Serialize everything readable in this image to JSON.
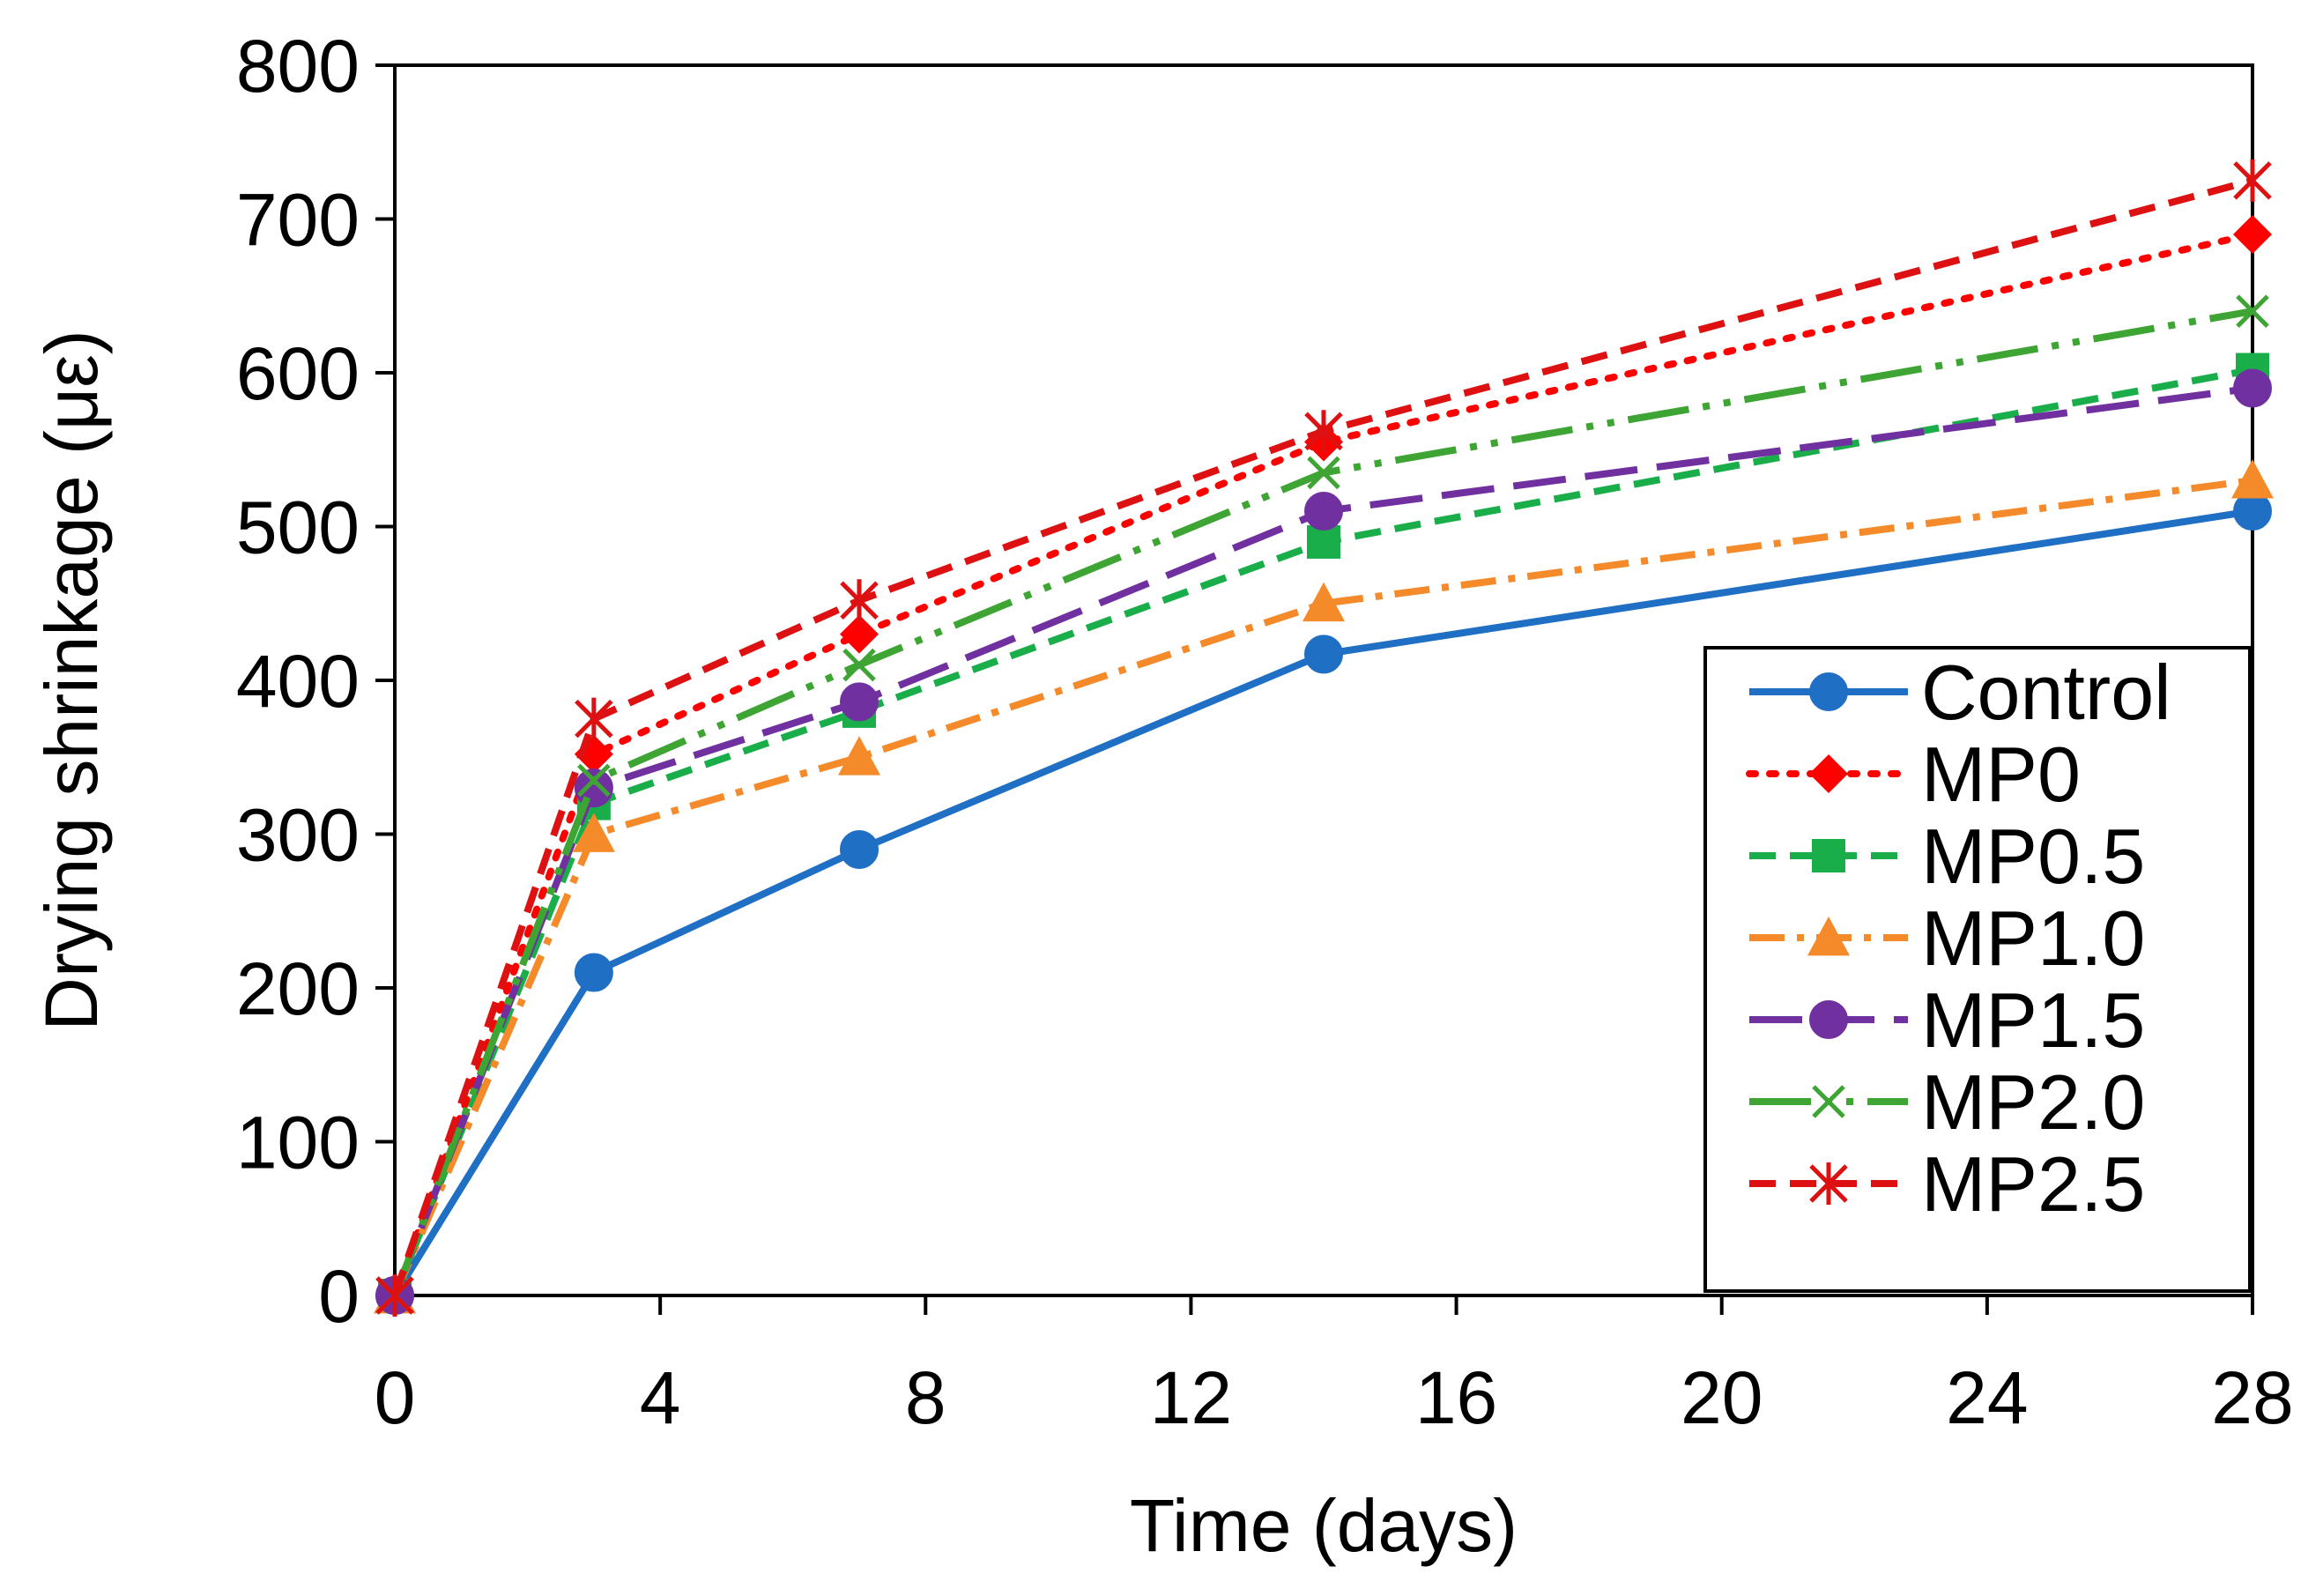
{
  "chart_data": {
    "type": "line",
    "title": "",
    "xlabel": "Time (days)",
    "ylabel": "Drying shrinkage (με)",
    "xlim": [
      0,
      28
    ],
    "ylim": [
      0,
      800
    ],
    "xticks": [
      0,
      4,
      8,
      12,
      16,
      20,
      24,
      28
    ],
    "yticks": [
      0,
      100,
      200,
      300,
      400,
      500,
      600,
      700,
      800
    ],
    "x": [
      0,
      3,
      7,
      14,
      28
    ],
    "legend_position": "bottom-right",
    "grid": false,
    "series": [
      {
        "name": "Control",
        "color": "#1F6FC5",
        "dash": "solid",
        "marker": "circle",
        "values": [
          0,
          210,
          290,
          417,
          510
        ]
      },
      {
        "name": "MP0",
        "color": "#FF0000",
        "dash": "dot",
        "marker": "diamond",
        "values": [
          0,
          352,
          430,
          555,
          690
        ]
      },
      {
        "name": "MP0.5",
        "color": "#1AAE4A",
        "dash": "dash",
        "marker": "square",
        "values": [
          0,
          320,
          380,
          490,
          602
        ]
      },
      {
        "name": "MP1.0",
        "color": "#F58A2A",
        "dash": "dashdot",
        "marker": "triangle",
        "values": [
          0,
          300,
          350,
          450,
          530
        ]
      },
      {
        "name": "MP1.5",
        "color": "#7030A0",
        "dash": "longdash",
        "marker": "circle",
        "values": [
          0,
          330,
          386,
          510,
          590
        ]
      },
      {
        "name": "MP2.0",
        "color": "#3EA535",
        "dash": "longdashdotdot",
        "marker": "x",
        "values": [
          0,
          335,
          410,
          535,
          640
        ]
      },
      {
        "name": "MP2.5",
        "color": "#DD1111",
        "dash": "dash",
        "marker": "star",
        "values": [
          0,
          375,
          452,
          562,
          725
        ]
      }
    ]
  }
}
